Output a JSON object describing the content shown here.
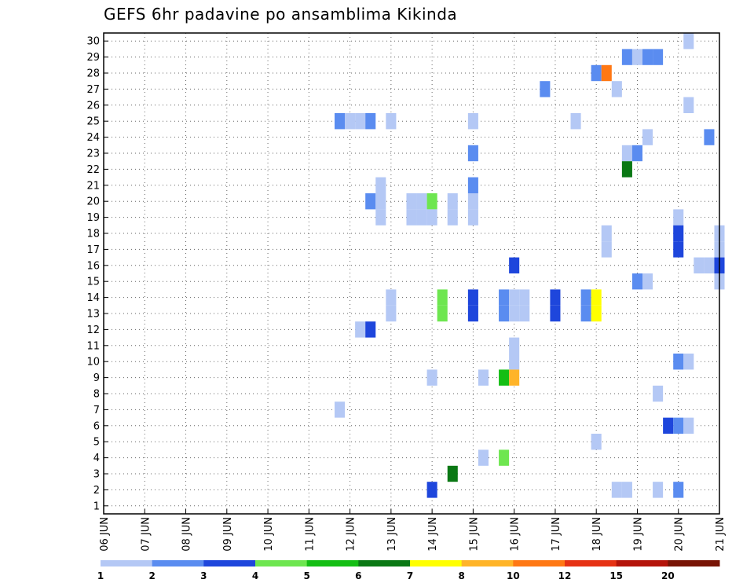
{
  "chart_data": {
    "type": "heatmap",
    "title": "GEFS 6hr padavine po ansamblima Kikinda",
    "x_tick_labels": [
      "06 JUN",
      "07 JUN",
      "08 JUN",
      "09 JUN",
      "10 JUN",
      "11 JUN",
      "12 JUN",
      "13 JUN",
      "14 JUN",
      "15 JUN",
      "16 JUN",
      "17 JUN",
      "18 JUN",
      "19 JUN",
      "20 JUN",
      "21 JUN"
    ],
    "y_tick_labels": [
      "1",
      "2",
      "3",
      "4",
      "5",
      "6",
      "7",
      "8",
      "9",
      "10",
      "11",
      "12",
      "13",
      "14",
      "15",
      "16",
      "17",
      "18",
      "19",
      "20",
      "21",
      "22",
      "23",
      "24",
      "25",
      "26",
      "27",
      "28",
      "29",
      "30"
    ],
    "xlim_days": [
      6,
      21
    ],
    "ylim": [
      0.5,
      30.5
    ],
    "grid": true,
    "colorbar": {
      "levels": [
        "1",
        "2",
        "3",
        "4",
        "5",
        "6",
        "7",
        "8",
        "10",
        "12",
        "15",
        "20"
      ],
      "colors": [
        "#b4c8f5",
        "#5a8cf0",
        "#1e46dc",
        "#6ee650",
        "#14be14",
        "#0a7814",
        "#ffff00",
        "#ffb428",
        "#ff7814",
        "#e63214",
        "#b4140a",
        "#781405"
      ]
    },
    "cells": [
      {
        "member": 30,
        "day": 20.25,
        "bin": 0
      },
      {
        "member": 29,
        "day": 18.75,
        "bin": 1
      },
      {
        "member": 29,
        "day": 19.0,
        "bin": 0
      },
      {
        "member": 29,
        "day": 19.25,
        "bin": 1
      },
      {
        "member": 29,
        "day": 19.5,
        "bin": 1
      },
      {
        "member": 28,
        "day": 18.0,
        "bin": 1
      },
      {
        "member": 28,
        "day": 18.25,
        "bin": 8
      },
      {
        "member": 27,
        "day": 16.75,
        "bin": 1
      },
      {
        "member": 27,
        "day": 18.5,
        "bin": 0
      },
      {
        "member": 26,
        "day": 20.25,
        "bin": 0
      },
      {
        "member": 25,
        "day": 11.75,
        "bin": 1
      },
      {
        "member": 25,
        "day": 12.0,
        "bin": 0
      },
      {
        "member": 25,
        "day": 12.25,
        "bin": 0
      },
      {
        "member": 25,
        "day": 12.5,
        "bin": 1
      },
      {
        "member": 25,
        "day": 13.0,
        "bin": 0
      },
      {
        "member": 25,
        "day": 15.0,
        "bin": 0
      },
      {
        "member": 25,
        "day": 17.5,
        "bin": 0
      },
      {
        "member": 24,
        "day": 19.25,
        "bin": 0
      },
      {
        "member": 24,
        "day": 20.75,
        "bin": 1
      },
      {
        "member": 23,
        "day": 15.0,
        "bin": 1
      },
      {
        "member": 23,
        "day": 18.75,
        "bin": 0
      },
      {
        "member": 23,
        "day": 19.0,
        "bin": 1
      },
      {
        "member": 22,
        "day": 18.75,
        "bin": 5
      },
      {
        "member": 21,
        "day": 12.75,
        "bin": 0
      },
      {
        "member": 21,
        "day": 15.0,
        "bin": 1
      },
      {
        "member": 20,
        "day": 12.5,
        "bin": 1
      },
      {
        "member": 20,
        "day": 12.75,
        "bin": 0
      },
      {
        "member": 20,
        "day": 13.5,
        "bin": 0
      },
      {
        "member": 20,
        "day": 13.75,
        "bin": 0
      },
      {
        "member": 20,
        "day": 14.0,
        "bin": 3
      },
      {
        "member": 20,
        "day": 14.5,
        "bin": 0
      },
      {
        "member": 20,
        "day": 15.0,
        "bin": 0
      },
      {
        "member": 19,
        "day": 12.75,
        "bin": 0
      },
      {
        "member": 19,
        "day": 13.5,
        "bin": 0
      },
      {
        "member": 19,
        "day": 13.75,
        "bin": 0
      },
      {
        "member": 19,
        "day": 14.0,
        "bin": 0
      },
      {
        "member": 19,
        "day": 14.5,
        "bin": 0
      },
      {
        "member": 19,
        "day": 15.0,
        "bin": 0
      },
      {
        "member": 19,
        "day": 20.0,
        "bin": 0
      },
      {
        "member": 18,
        "day": 18.25,
        "bin": 0
      },
      {
        "member": 18,
        "day": 20.0,
        "bin": 2
      },
      {
        "member": 18,
        "day": 21.0,
        "bin": 0
      },
      {
        "member": 17,
        "day": 18.25,
        "bin": 0
      },
      {
        "member": 17,
        "day": 20.0,
        "bin": 2
      },
      {
        "member": 17,
        "day": 21.0,
        "bin": 0
      },
      {
        "member": 16,
        "day": 16.0,
        "bin": 2
      },
      {
        "member": 16,
        "day": 20.5,
        "bin": 0
      },
      {
        "member": 16,
        "day": 20.75,
        "bin": 0
      },
      {
        "member": 16,
        "day": 21.0,
        "bin": 2
      },
      {
        "member": 15,
        "day": 19.0,
        "bin": 1
      },
      {
        "member": 15,
        "day": 19.25,
        "bin": 0
      },
      {
        "member": 15,
        "day": 21.0,
        "bin": 0
      },
      {
        "member": 14,
        "day": 13.0,
        "bin": 0
      },
      {
        "member": 14,
        "day": 14.25,
        "bin": 3
      },
      {
        "member": 14,
        "day": 15.0,
        "bin": 2
      },
      {
        "member": 14,
        "day": 15.75,
        "bin": 1
      },
      {
        "member": 14,
        "day": 16.0,
        "bin": 0
      },
      {
        "member": 14,
        "day": 16.25,
        "bin": 0
      },
      {
        "member": 14,
        "day": 17.0,
        "bin": 2
      },
      {
        "member": 14,
        "day": 17.75,
        "bin": 1
      },
      {
        "member": 14,
        "day": 18.0,
        "bin": 6
      },
      {
        "member": 13,
        "day": 13.0,
        "bin": 0
      },
      {
        "member": 13,
        "day": 14.25,
        "bin": 3
      },
      {
        "member": 13,
        "day": 15.0,
        "bin": 2
      },
      {
        "member": 13,
        "day": 15.75,
        "bin": 1
      },
      {
        "member": 13,
        "day": 16.0,
        "bin": 0
      },
      {
        "member": 13,
        "day": 16.25,
        "bin": 0
      },
      {
        "member": 13,
        "day": 17.0,
        "bin": 2
      },
      {
        "member": 13,
        "day": 17.75,
        "bin": 1
      },
      {
        "member": 13,
        "day": 18.0,
        "bin": 6
      },
      {
        "member": 12,
        "day": 12.25,
        "bin": 0
      },
      {
        "member": 12,
        "day": 12.5,
        "bin": 2
      },
      {
        "member": 11,
        "day": 16.0,
        "bin": 0
      },
      {
        "member": 10,
        "day": 16.0,
        "bin": 0
      },
      {
        "member": 10,
        "day": 20.0,
        "bin": 1
      },
      {
        "member": 10,
        "day": 20.25,
        "bin": 0
      },
      {
        "member": 9,
        "day": 14.0,
        "bin": 0
      },
      {
        "member": 9,
        "day": 15.25,
        "bin": 0
      },
      {
        "member": 9,
        "day": 15.75,
        "bin": 4
      },
      {
        "member": 9,
        "day": 16.0,
        "bin": 7
      },
      {
        "member": 8,
        "day": 19.5,
        "bin": 0
      },
      {
        "member": 7,
        "day": 11.75,
        "bin": 0
      },
      {
        "member": 6,
        "day": 19.75,
        "bin": 2
      },
      {
        "member": 6,
        "day": 20.0,
        "bin": 1
      },
      {
        "member": 6,
        "day": 20.25,
        "bin": 0
      },
      {
        "member": 5,
        "day": 18.0,
        "bin": 0
      },
      {
        "member": 4,
        "day": 15.25,
        "bin": 0
      },
      {
        "member": 4,
        "day": 15.75,
        "bin": 3
      },
      {
        "member": 3,
        "day": 14.5,
        "bin": 5
      },
      {
        "member": 2,
        "day": 14.0,
        "bin": 2
      },
      {
        "member": 2,
        "day": 18.5,
        "bin": 0
      },
      {
        "member": 2,
        "day": 18.75,
        "bin": 0
      },
      {
        "member": 2,
        "day": 19.5,
        "bin": 0
      },
      {
        "member": 2,
        "day": 20.0,
        "bin": 1
      }
    ]
  }
}
